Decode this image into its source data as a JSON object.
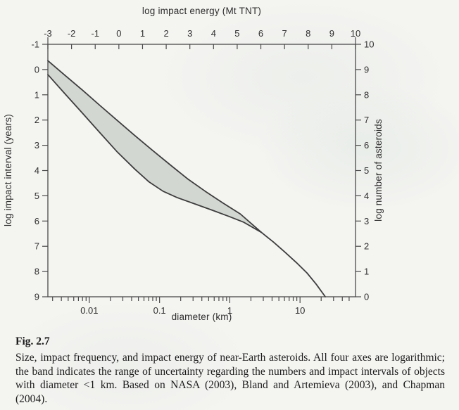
{
  "chart_data": {
    "type": "area",
    "title": "",
    "axes": {
      "top": {
        "label": "log impact energy (Mt TNT)",
        "range": [
          -3,
          10
        ],
        "ticks": [
          -3,
          -2,
          -1,
          0,
          1,
          2,
          3,
          4,
          5,
          6,
          7,
          8,
          9,
          10
        ]
      },
      "bottom": {
        "label": "diameter (km)",
        "scale": "log",
        "range_log10": [
          -2.59,
          1.79
        ],
        "major_ticks": [
          0.01,
          0.1,
          1,
          10
        ],
        "major_tick_labels": [
          "0.01",
          "0.1",
          "1",
          "10"
        ]
      },
      "left": {
        "label": "log impact interval (years)",
        "range": [
          -1,
          9
        ],
        "direction": "increases-downward",
        "ticks": [
          -1,
          0,
          1,
          2,
          3,
          4,
          5,
          6,
          7,
          8,
          9
        ]
      },
      "right": {
        "label": "log number of asteroids",
        "range": [
          0,
          10
        ],
        "direction": "increases-upward",
        "ticks": [
          10,
          9,
          8,
          7,
          6,
          5,
          4,
          3,
          2,
          1,
          0
        ]
      }
    },
    "units_note": "points are [log10 diameter (km), log impact interval (years)]",
    "band": {
      "upper": [
        [
          -2.59,
          -0.35
        ],
        [
          -2.35,
          0.22
        ],
        [
          -2.1,
          0.81
        ],
        [
          -1.85,
          1.42
        ],
        [
          -1.6,
          2.02
        ],
        [
          -1.35,
          2.62
        ],
        [
          -1.1,
          3.2
        ],
        [
          -0.85,
          3.77
        ],
        [
          -0.6,
          4.33
        ],
        [
          -0.35,
          4.82
        ],
        [
          -0.1,
          5.28
        ],
        [
          0.15,
          5.72
        ],
        [
          0.45,
          6.45
        ]
      ],
      "lower": [
        [
          -2.59,
          0.2
        ],
        [
          -2.35,
          0.95
        ],
        [
          -2.1,
          1.72
        ],
        [
          -1.85,
          2.5
        ],
        [
          -1.6,
          3.27
        ],
        [
          -1.35,
          3.95
        ],
        [
          -1.15,
          4.45
        ],
        [
          -0.95,
          4.82
        ],
        [
          -0.75,
          5.07
        ],
        [
          -0.5,
          5.32
        ],
        [
          -0.25,
          5.57
        ],
        [
          0.0,
          5.83
        ],
        [
          0.2,
          6.05
        ],
        [
          0.45,
          6.45
        ]
      ]
    },
    "merged_tail": [
      [
        0.45,
        6.45
      ],
      [
        0.62,
        6.83
      ],
      [
        0.78,
        7.22
      ],
      [
        0.95,
        7.65
      ],
      [
        1.1,
        8.06
      ],
      [
        1.23,
        8.5
      ],
      [
        1.36,
        9.0
      ]
    ],
    "grid": "off",
    "legend": "none",
    "colors": {
      "band_fill": "#d3d7d2",
      "curve": "#3d3d3d",
      "axis": "#4a4a4a",
      "tick_label": "#2f2f2f"
    }
  },
  "caption": {
    "label": "Fig. 2.7",
    "text": "Size, impact frequency, and impact energy of near-Earth asteroids. All four axes are logarithmic; the band indicates the range of uncertainty regarding the numbers and impact intervals of objects with diameter <1 km. Based on NASA (2003), Bland and Artemieva (2003), and Chapman (2004)."
  }
}
